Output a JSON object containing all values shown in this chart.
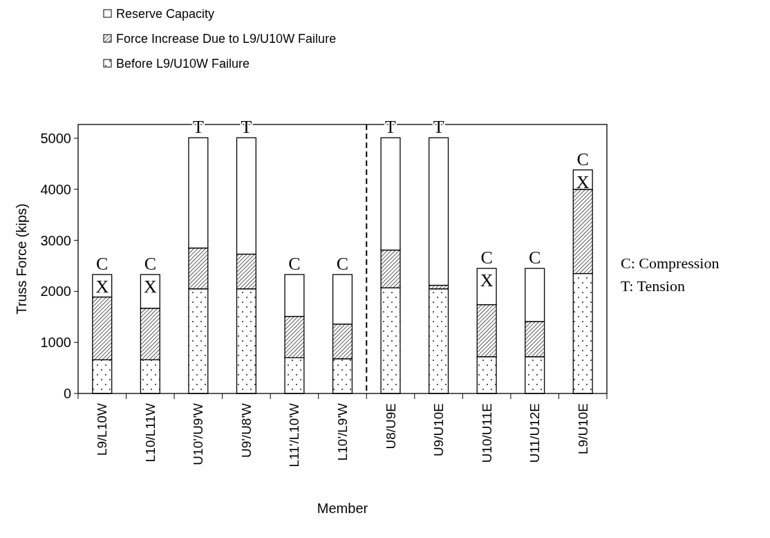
{
  "chart_data": {
    "type": "bar",
    "stacked": true,
    "xlabel": "Member",
    "ylabel": "Truss Force (kips)",
    "categories": [
      "L9/L10W",
      "L10/L11W",
      "U10'/U9'W",
      "U9'/U8'W",
      "L11'/L10'W",
      "L10'/L9'W",
      "U8/U9E",
      "U9/U10E",
      "U10/U11E",
      "U11/U12E",
      "L9/U10E"
    ],
    "series": [
      {
        "name": "Before L9/U10W Failure",
        "color": "#ffffff",
        "values": [
          660,
          660,
          2050,
          2050,
          700,
          680,
          2070,
          2050,
          720,
          720,
          2350
        ]
      },
      {
        "name": "Force Increase Due to  L9/U10W Failure",
        "color": "#ffffff",
        "values": [
          1230,
          1010,
          800,
          680,
          810,
          680,
          740,
          70,
          1020,
          690,
          1650
        ]
      },
      {
        "name": "Reserve Capacity",
        "color": "#ffffff",
        "values": [
          440,
          660,
          2160,
          2280,
          820,
          970,
          2200,
          2890,
          710,
          1040,
          380
        ]
      }
    ],
    "ylim": [
      0,
      5270
    ],
    "yticks": [
      0,
      1000,
      2000,
      3000,
      4000,
      5000
    ],
    "grid": false,
    "legend": "top left",
    "annotations": [
      {
        "text": "C",
        "x": "L9/L10W",
        "y": 2330
      },
      {
        "text": "X",
        "x": "L9/L10W",
        "y": 2330
      },
      {
        "text": "C",
        "x": "L10/L11W",
        "y": 2330
      },
      {
        "text": "X",
        "x": "L10/L11W",
        "y": 2330
      },
      {
        "text": "T",
        "x": "U10'/U9'W",
        "y": 5010
      },
      {
        "text": "T",
        "x": "U9'/U8'W",
        "y": 5010
      },
      {
        "text": "C",
        "x": "L11'/L10'W",
        "y": 2330
      },
      {
        "text": "C",
        "x": "L10'/L9'W",
        "y": 2330
      },
      {
        "text": "T",
        "x": "U8/U9E",
        "y": 5010
      },
      {
        "text": "T",
        "x": "U9/U10E",
        "y": 5010
      },
      {
        "text": "C",
        "x": "U10/U11E",
        "y": 2450
      },
      {
        "text": "X",
        "x": "U10/U11E",
        "y": 2450
      },
      {
        "text": "C",
        "x": "U11/U12E",
        "y": 2450
      },
      {
        "text": "C",
        "x": "L9/U10E",
        "y": 4380
      },
      {
        "text": "X",
        "x": "L9/U10E",
        "y": 4380
      },
      "C: Compression",
      "T: Tension"
    ]
  }
}
